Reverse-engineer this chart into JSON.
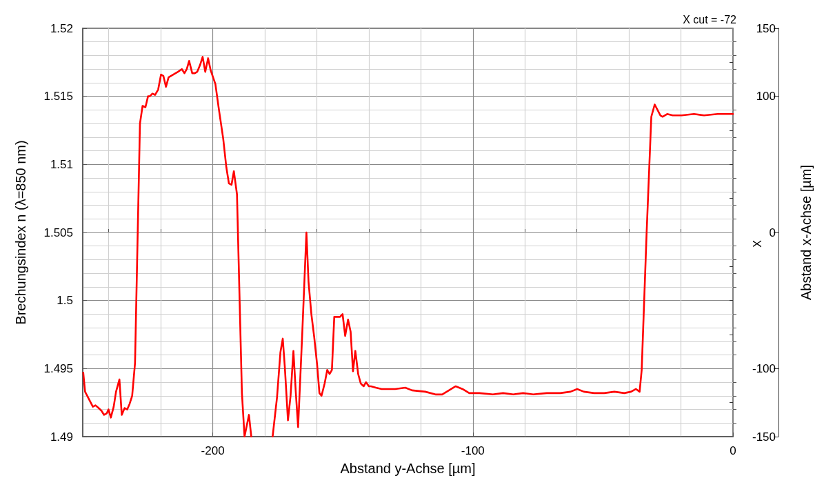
{
  "chart_data": {
    "type": "line",
    "xlabel": "Abstand y-Achse [µm]",
    "ylabel": "Brechungsindex n (λ=850 nm)",
    "y2label": "Abstand x-Achse [µm]",
    "annotations": [
      "X cut = -72",
      "X"
    ],
    "xlim": [
      -250,
      0
    ],
    "xticks": [
      {
        "value": -240,
        "label": null
      },
      {
        "value": -220,
        "label": null
      },
      -200,
      {
        "value": -180,
        "label": null
      },
      {
        "value": -160,
        "label": null
      },
      {
        "value": -140,
        "label": null
      },
      {
        "value": -120,
        "label": null
      },
      -100,
      {
        "value": -80,
        "label": null
      },
      {
        "value": -60,
        "label": null
      },
      {
        "value": -40,
        "label": null
      },
      {
        "value": -20,
        "label": null
      },
      0
    ],
    "ylim": [
      1.49,
      1.52
    ],
    "yticks": [
      1.49,
      {
        "value": 1.491,
        "label": null
      },
      {
        "value": 1.492,
        "label": null
      },
      {
        "value": 1.493,
        "label": null
      },
      {
        "value": 1.494,
        "label": null
      },
      1.495,
      {
        "value": 1.496,
        "label": null
      },
      {
        "value": 1.497,
        "label": null
      },
      {
        "value": 1.498,
        "label": null
      },
      {
        "value": 1.499,
        "label": null
      },
      1.5,
      {
        "value": 1.501,
        "label": null
      },
      {
        "value": 1.502,
        "label": null
      },
      {
        "value": 1.503,
        "label": null
      },
      {
        "value": 1.504,
        "label": null
      },
      1.505,
      {
        "value": 1.506,
        "label": null
      },
      {
        "value": 1.507,
        "label": null
      },
      {
        "value": 1.508,
        "label": null
      },
      {
        "value": 1.509,
        "label": null
      },
      1.51,
      {
        "value": 1.511,
        "label": null
      },
      {
        "value": 1.512,
        "label": null
      },
      {
        "value": 1.513,
        "label": null
      },
      {
        "value": 1.514,
        "label": null
      },
      1.515,
      {
        "value": 1.516,
        "label": null
      },
      {
        "value": 1.517,
        "label": null
      },
      {
        "value": 1.518,
        "label": null
      },
      {
        "value": 1.519,
        "label": null
      },
      1.52
    ],
    "y2lim": [
      -150,
      150
    ],
    "y2ticks": [
      -150,
      {
        "value": -125,
        "label": null
      },
      -100,
      {
        "value": -75,
        "label": null
      },
      {
        "value": -50,
        "label": null
      },
      {
        "value": -25,
        "label": null
      },
      0,
      {
        "value": 25,
        "label": null
      },
      {
        "value": 50,
        "label": null
      },
      {
        "value": 75,
        "label": null
      },
      100,
      {
        "value": 125,
        "label": null
      },
      150
    ],
    "grid": true,
    "marker": "none",
    "line_style": "solid",
    "series": [
      {
        "color": "#ff0000",
        "x": [
          -249.8,
          -249.1,
          -246.1,
          -245.1,
          -243.9,
          -242.8,
          -241.8,
          -240.8,
          -240.1,
          -239.2,
          -238.1,
          -237.2,
          -235.9,
          -235.0,
          -233.9,
          -232.9,
          -232.0,
          -231.0,
          -229.9,
          -228.0,
          -227.0,
          -225.9,
          -224.9,
          -224.2,
          -223.2,
          -222.2,
          -221.0,
          -219.9,
          -219.0,
          -218.0,
          -217.0,
          -215.2,
          -213.4,
          -211.9,
          -210.9,
          -210.0,
          -209.1,
          -207.9,
          -206.9,
          -206.0,
          -204.9,
          -203.9,
          -202.9,
          -201.8,
          -200.8,
          -199.0,
          -197.7,
          -196.0,
          -194.8,
          -193.8,
          -192.8,
          -191.9,
          -190.7,
          -188.8,
          -187.8,
          -186.1,
          -185.2,
          -180.0,
          -177.0,
          -175.3,
          -174.0,
          -173.1,
          -172.3,
          -171.1,
          -170.1,
          -169.0,
          -168.1,
          -167.2,
          -165.6,
          -164.0,
          -163.2,
          -162.1,
          -161.0,
          -159.9,
          -159.0,
          -158.2,
          -157.0,
          -156.0,
          -155.1,
          -154.2,
          -153.3,
          -151.1,
          -150.1,
          -149.1,
          -148.0,
          -147.0,
          -146.1,
          -145.2,
          -144.1,
          -143.1,
          -142.0,
          -141.1,
          -140.0,
          -139.2,
          -137.3,
          -135.1,
          -133.8,
          -129.9,
          -126.0,
          -123.4,
          -118.3,
          -114.4,
          -111.8,
          -109.2,
          -106.6,
          -104.0,
          -101.4,
          -97.5,
          -92.3,
          -88.4,
          -84.5,
          -80.7,
          -76.8,
          -71.6,
          -66.4,
          -62.5,
          -59.9,
          -57.3,
          -53.4,
          -49.5,
          -45.6,
          -41.8,
          -39.2,
          -37.3,
          -35.9,
          -35.1,
          -33.2,
          -31.4,
          -30.1,
          -27.9,
          -27.1,
          -25.3,
          -23.2,
          -19.7,
          -15.0,
          -11.1,
          -5.9,
          0
        ],
        "values": [
          1.4947,
          1.4933,
          1.4922,
          1.4923,
          1.4921,
          1.4919,
          1.4916,
          1.4917,
          1.492,
          1.4914,
          1.4922,
          1.4933,
          1.4942,
          1.4916,
          1.4921,
          1.492,
          1.4924,
          1.493,
          1.4954,
          1.513,
          1.5143,
          1.5142,
          1.515,
          1.515,
          1.5152,
          1.5151,
          1.5155,
          1.5166,
          1.5165,
          1.5157,
          1.5164,
          1.5166,
          1.5168,
          1.517,
          1.5167,
          1.517,
          1.5176,
          1.5167,
          1.5167,
          1.5168,
          1.5173,
          1.5179,
          1.5168,
          1.5178,
          1.5169,
          1.5159,
          1.5141,
          1.5119,
          1.5098,
          1.5086,
          1.5085,
          1.5095,
          1.5078,
          1.4932,
          1.49,
          1.4916,
          1.49,
          null,
          1.49,
          1.4929,
          1.4962,
          1.4972,
          1.4951,
          1.4912,
          1.493,
          1.4963,
          1.4933,
          1.4907,
          1.4976,
          1.505,
          1.5014,
          1.499,
          1.4973,
          1.4953,
          1.4932,
          1.493,
          1.4939,
          1.4949,
          1.4946,
          1.4949,
          1.4988,
          1.4988,
          1.499,
          1.4974,
          1.4986,
          1.4977,
          1.4948,
          1.4963,
          1.4946,
          1.4939,
          1.4937,
          1.494,
          1.4937,
          1.4937,
          1.4936,
          1.4935,
          1.4935,
          1.4935,
          1.4936,
          1.4934,
          1.4933,
          1.4931,
          1.4931,
          1.4934,
          1.4937,
          1.4935,
          1.4932,
          1.4932,
          1.4931,
          1.4932,
          1.4931,
          1.4932,
          1.4931,
          1.4932,
          1.4932,
          1.4933,
          1.4935,
          1.4933,
          1.4932,
          1.4932,
          1.4933,
          1.4932,
          1.4933,
          1.4935,
          1.4933,
          1.4949,
          1.505,
          1.5135,
          1.5144,
          1.5136,
          1.5135,
          1.5137,
          1.5136,
          1.5136,
          1.5137,
          1.5136,
          1.5137,
          1.5137
        ]
      }
    ]
  }
}
